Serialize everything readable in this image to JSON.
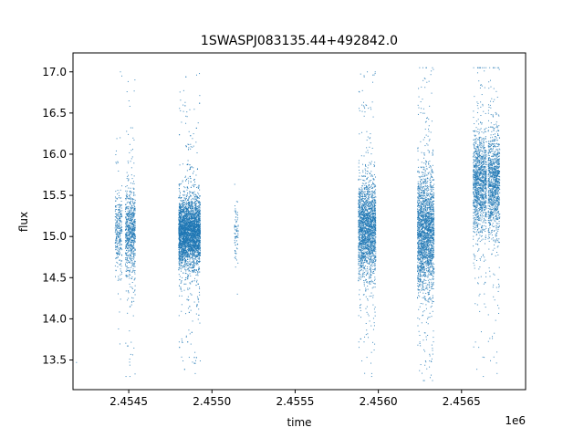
{
  "chart_data": {
    "type": "scatter",
    "title": "1SWASPJ083135.44+492842.0",
    "xlabel": "time",
    "ylabel": "flux",
    "x_offset_label": "1e6",
    "xlim": [
      2454165,
      2456885
    ],
    "ylim": [
      13.14,
      17.23
    ],
    "xticks": [
      {
        "value": 2454500,
        "label": "2.4545"
      },
      {
        "value": 2455000,
        "label": "2.4550"
      },
      {
        "value": 2455500,
        "label": "2.4555"
      },
      {
        "value": 2456000,
        "label": "2.4560"
      },
      {
        "value": 2456500,
        "label": "2.4565"
      }
    ],
    "yticks": [
      {
        "value": 13.5,
        "label": "13.5"
      },
      {
        "value": 14.0,
        "label": "14.0"
      },
      {
        "value": 14.5,
        "label": "14.5"
      },
      {
        "value": 15.0,
        "label": "15.0"
      },
      {
        "value": 15.5,
        "label": "15.5"
      },
      {
        "value": 16.0,
        "label": "16.0"
      },
      {
        "value": 16.5,
        "label": "16.5"
      },
      {
        "value": 17.0,
        "label": "17.0"
      }
    ],
    "grid": false,
    "marker_color": "#1f77b4",
    "isolated_points": [
      {
        "x": 2454186,
        "y": 13.47
      },
      {
        "x": 2455153,
        "y": 14.3
      }
    ],
    "clusters": [
      {
        "x_start": 2454418,
        "x_end": 2454460,
        "center": 15.05,
        "spread": 0.22,
        "y_min": 13.3,
        "y_max": 17.0,
        "density": 0.75
      },
      {
        "x_start": 2454480,
        "x_end": 2454540,
        "center": 15.05,
        "spread": 0.28,
        "y_min": 13.3,
        "y_max": 17.0,
        "density": 1.3
      },
      {
        "x_start": 2454800,
        "x_end": 2454930,
        "center": 15.05,
        "spread": 0.2,
        "y_min": 13.3,
        "y_max": 17.0,
        "density": 3.0
      },
      {
        "x_start": 2455135,
        "x_end": 2455158,
        "center": 15.05,
        "spread": 0.17,
        "y_min": 14.5,
        "y_max": 15.75,
        "density": 0.35
      },
      {
        "x_start": 2455880,
        "x_end": 2455985,
        "center": 15.1,
        "spread": 0.28,
        "y_min": 13.3,
        "y_max": 17.0,
        "density": 2.0
      },
      {
        "x_start": 2456235,
        "x_end": 2456335,
        "center": 15.05,
        "spread": 0.35,
        "y_min": 13.25,
        "y_max": 17.05,
        "density": 2.2
      },
      {
        "x_start": 2456570,
        "x_end": 2456650,
        "center": 15.65,
        "spread": 0.3,
        "y_min": 13.3,
        "y_max": 17.05,
        "density": 1.6
      },
      {
        "x_start": 2456660,
        "x_end": 2456730,
        "center": 15.65,
        "spread": 0.3,
        "y_min": 13.3,
        "y_max": 17.05,
        "density": 1.6
      }
    ]
  }
}
